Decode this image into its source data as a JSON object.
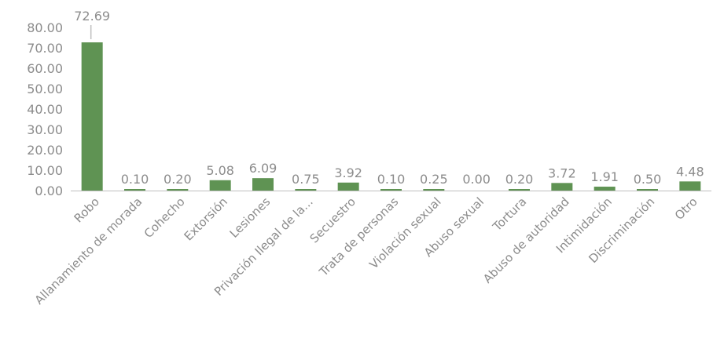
{
  "chart_data": {
    "type": "bar",
    "categories": [
      "Robo",
      "Allanamiento de morada",
      "Cohecho",
      "Extorsión",
      "Lesiones",
      "Privación Ilegal de la...",
      "Secuestro",
      "Trata de personas",
      "Violación sexual",
      "Abuso sexual",
      "Tortura",
      "Abuso de autoridad",
      "Intimidación",
      "Discriminación",
      "Otro"
    ],
    "values": [
      72.69,
      0.1,
      0.2,
      5.08,
      6.09,
      0.75,
      3.92,
      0.1,
      0.25,
      0.0,
      0.2,
      3.72,
      1.91,
      0.5,
      4.48
    ],
    "data_labels": [
      "72.69",
      "0.10",
      "0.20",
      "5.08",
      "6.09",
      "0.75",
      "3.92",
      "0.10",
      "0.25",
      "0.00",
      "0.20",
      "3.72",
      "1.91",
      "0.50",
      "4.48"
    ],
    "yticks": [
      "0.00",
      "10.00",
      "20.00",
      "30.00",
      "40.00",
      "50.00",
      "60.00",
      "70.00",
      "80.00"
    ],
    "ylim": [
      0,
      80
    ],
    "title": "",
    "xlabel": "",
    "ylabel": "",
    "grid": false,
    "bar_color": "#5f9353",
    "axis_color": "#bfbfbf",
    "text_color": "#8c8c8c"
  }
}
